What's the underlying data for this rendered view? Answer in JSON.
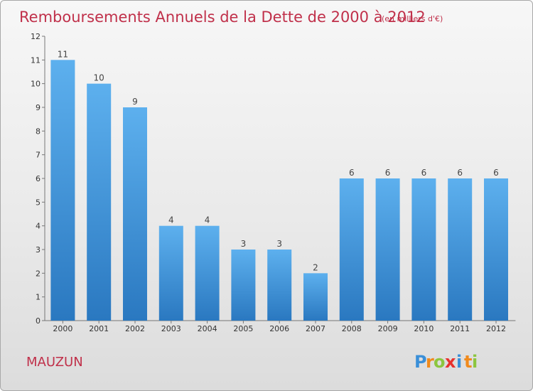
{
  "chart_data": {
    "type": "bar",
    "title": "Remboursements Annuels de la Dette de 2000 à 2012",
    "subtitle": "(en milliers d'€)",
    "categories": [
      "2000",
      "2001",
      "2002",
      "2003",
      "2004",
      "2005",
      "2006",
      "2007",
      "2008",
      "2009",
      "2010",
      "2011",
      "2012"
    ],
    "values": [
      11,
      10,
      9,
      4,
      4,
      3,
      3,
      2,
      6,
      6,
      6,
      6,
      6
    ],
    "ylim": [
      0,
      12
    ],
    "yticks": [
      0,
      1,
      2,
      3,
      4,
      5,
      6,
      7,
      8,
      9,
      10,
      11,
      12
    ],
    "grid": false,
    "bar_color": "#3d95dc"
  },
  "commune": "MAUZUN",
  "logo": {
    "text": "Proxiti",
    "letters": [
      {
        "ch": "P",
        "color": "#3a8fd8"
      },
      {
        "ch": "r",
        "color": "#f08a1c"
      },
      {
        "ch": "o",
        "color": "#8cc63f"
      },
      {
        "ch": "x",
        "color": "#e8312d"
      },
      {
        "ch": "i",
        "color": "#3a8fd8"
      },
      {
        "ch": "t",
        "color": "#f08a1c"
      },
      {
        "ch": "i",
        "color": "#8cc63f"
      }
    ]
  }
}
